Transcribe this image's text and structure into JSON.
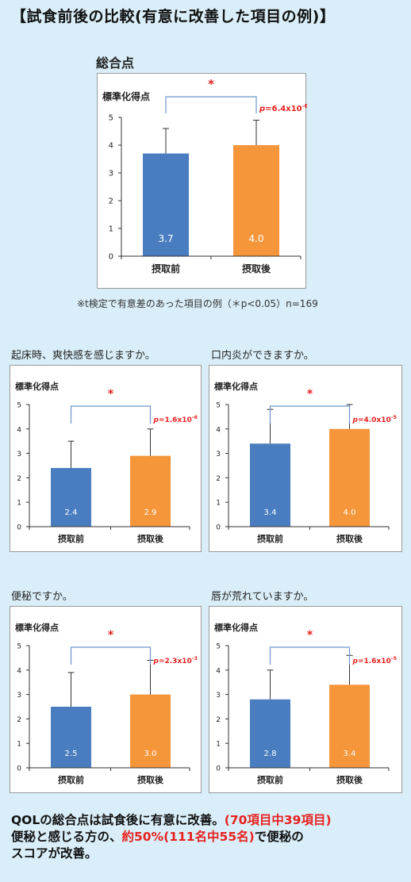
{
  "page": {
    "title": "【試食前後の比較(有意に改善した項目の例)】",
    "note": "※t検定で有意差のあった項目の例（＊p<0.05）n=169",
    "summary": {
      "line1_a": "QOLの総合点は試食後に有意に改善。",
      "line1_b": "(70項目中39項目)",
      "line2_a": "便秘と感じる方の、",
      "line2_b": "約50%(111名中55名)",
      "line2_c": "で便秘の",
      "line3": "スコアが改善。"
    }
  },
  "colors": {
    "before": "#4a7dbf",
    "after": "#f5963b",
    "bracket": "#6d96c8",
    "significance": "#e8211f"
  },
  "chart_data": [
    {
      "id": "total",
      "type": "bar",
      "section_label": "総合点",
      "ylabel": "標準化得点",
      "categories": [
        "摂取前",
        "摂取後"
      ],
      "values": [
        3.7,
        4.0
      ],
      "error_upper": [
        4.6,
        4.9
      ],
      "value_labels": [
        "3.7",
        "4.0"
      ],
      "ylim": [
        0,
        5
      ],
      "yticks": [
        0,
        1,
        2,
        3,
        4,
        5
      ],
      "significance": {
        "star": "*",
        "p_prefix": "p",
        "p_mantissa": "=6.4x10",
        "p_exponent": "-6"
      }
    },
    {
      "id": "waking",
      "type": "bar",
      "section_label": "起床時、爽快感を感じますか。",
      "ylabel": "標準化得点",
      "categories": [
        "摂取前",
        "摂取後"
      ],
      "values": [
        2.4,
        2.9
      ],
      "error_upper": [
        3.5,
        4.0
      ],
      "value_labels": [
        "2.4",
        "2.9"
      ],
      "ylim": [
        0,
        5
      ],
      "yticks": [
        0,
        1,
        2,
        3,
        4,
        5
      ],
      "significance": {
        "star": "*",
        "p_prefix": "p",
        "p_mantissa": "=1.6x10",
        "p_exponent": "-6"
      }
    },
    {
      "id": "stomatitis",
      "type": "bar",
      "section_label": "口内炎ができますか。",
      "ylabel": "標準化得点",
      "categories": [
        "摂取前",
        "摂取後"
      ],
      "values": [
        3.4,
        4.0
      ],
      "error_upper": [
        4.8,
        5.0
      ],
      "value_labels": [
        "3.4",
        "4.0"
      ],
      "ylim": [
        0,
        5
      ],
      "yticks": [
        0,
        1,
        2,
        3,
        4,
        5
      ],
      "significance": {
        "star": "*",
        "p_prefix": "p",
        "p_mantissa": "=4.0x10",
        "p_exponent": "-5"
      }
    },
    {
      "id": "constipation",
      "type": "bar",
      "section_label": "便秘ですか。",
      "ylabel": "標準化得点",
      "categories": [
        "摂取前",
        "摂取後"
      ],
      "values": [
        2.5,
        3.0
      ],
      "error_upper": [
        3.9,
        4.4
      ],
      "value_labels": [
        "2.5",
        "3.0"
      ],
      "ylim": [
        0,
        5
      ],
      "yticks": [
        0,
        1,
        2,
        3,
        4,
        5
      ],
      "significance": {
        "star": "*",
        "p_prefix": "p",
        "p_mantissa": "=2.3x10",
        "p_exponent": "-3"
      }
    },
    {
      "id": "lips",
      "type": "bar",
      "section_label": "唇が荒れていますか。",
      "ylabel": "標準化得点",
      "categories": [
        "摂取前",
        "摂取後"
      ],
      "values": [
        2.8,
        3.4
      ],
      "error_upper": [
        4.0,
        4.6
      ],
      "value_labels": [
        "2.8",
        "3.4"
      ],
      "ylim": [
        0,
        5
      ],
      "yticks": [
        0,
        1,
        2,
        3,
        4,
        5
      ],
      "significance": {
        "star": "*",
        "p_prefix": "p",
        "p_mantissa": "=1.6x10",
        "p_exponent": "-5"
      }
    }
  ]
}
